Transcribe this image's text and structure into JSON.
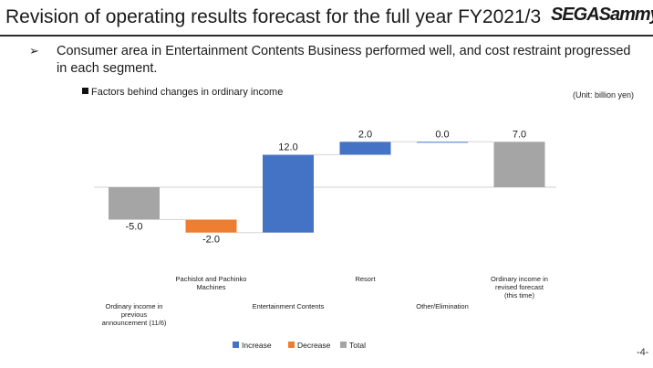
{
  "header": {
    "title": "Revision of operating results forecast for the full year FY2021/3",
    "logo_text": "SEGASammy"
  },
  "bullet": {
    "marker": "➢",
    "text": "Consumer area in Entertainment Contents Business performed well, and cost restraint progressed in each segment."
  },
  "chart_title": "Factors behind changes in ordinary income",
  "unit_label": "(Unit: billion yen)",
  "page_number": "-4-",
  "colors": {
    "increase": "#4472c4",
    "decrease": "#ed7d31",
    "total": "#a5a5a5"
  },
  "chart_data": {
    "type": "bar",
    "subtype": "waterfall",
    "categories": [
      "Ordinary income in previous announcement (11/6)",
      "Pachislot and Pachinko Machines",
      "Entertainment Contents",
      "Resort",
      "Other/Elimination",
      "Ordinary income in revised forecast (this time)"
    ],
    "category_labels": [
      [
        "Ordinary income in",
        "previous",
        "announcement (11/6)"
      ],
      [
        "Pachislot and Pachinko",
        "Machines"
      ],
      [
        "Entertainment Contents"
      ],
      [
        "Resort"
      ],
      [
        "Other/Elimination"
      ],
      [
        "Ordinary income in",
        "revised forecast",
        "(this time)"
      ]
    ],
    "values": [
      -5.0,
      -2.0,
      12.0,
      2.0,
      0.0,
      7.0
    ],
    "value_labels": [
      "-5.0",
      "-2.0",
      "12.0",
      "2.0",
      "0.0",
      "7.0"
    ],
    "kinds": [
      "total",
      "decrease",
      "increase",
      "increase",
      "increase",
      "total"
    ],
    "legend": [
      {
        "name": "Increase",
        "kind": "increase"
      },
      {
        "name": "Decrease",
        "kind": "decrease"
      },
      {
        "name": "Total",
        "kind": "total"
      }
    ],
    "legend_position": "bottom",
    "ylim": [
      -7.5,
      7.0
    ],
    "grid": false
  }
}
